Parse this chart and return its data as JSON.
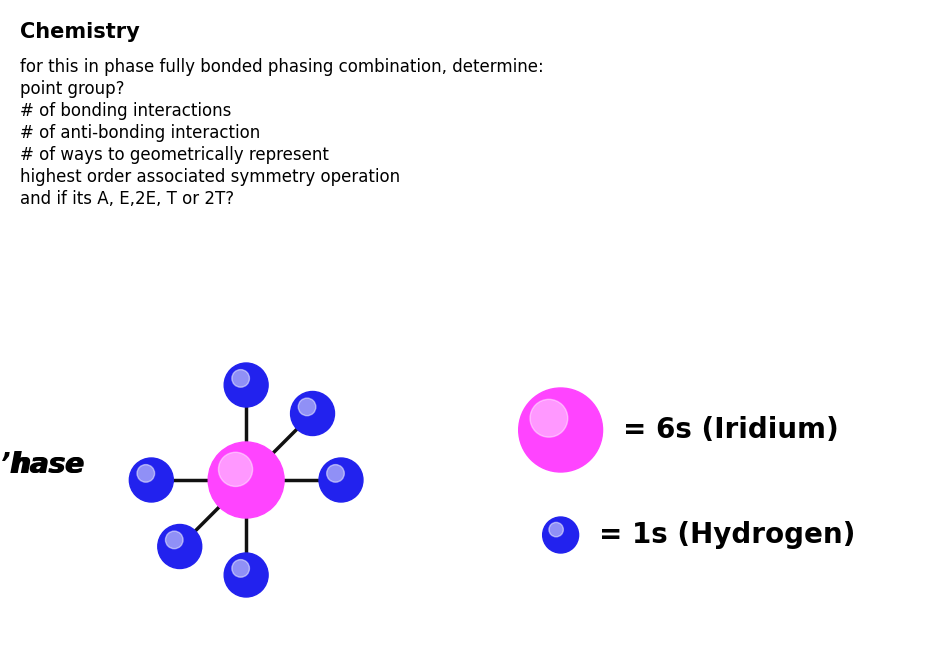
{
  "title": "Chemistry",
  "description_lines": [
    "for this in phase fully bonded phasing combination, determine:",
    "point group?",
    "# of bonding interactions",
    "# of anti-bonding interaction",
    "# of ways to geometrically represent",
    "highest order associated symmetry operation",
    "and if its A, E,2E, T or 2T?"
  ],
  "phase_label": "’hase",
  "center_color": "#FF44FF",
  "ligand_fill_color": "#2222CC",
  "ligand_edge_color": "#0000AA",
  "bond_color": "#111111",
  "bond_lw": 2.5,
  "background_color": "#ffffff",
  "title_fontsize": 15,
  "body_fontsize": 12,
  "phase_fontsize": 20,
  "legend_fontsize": 20
}
